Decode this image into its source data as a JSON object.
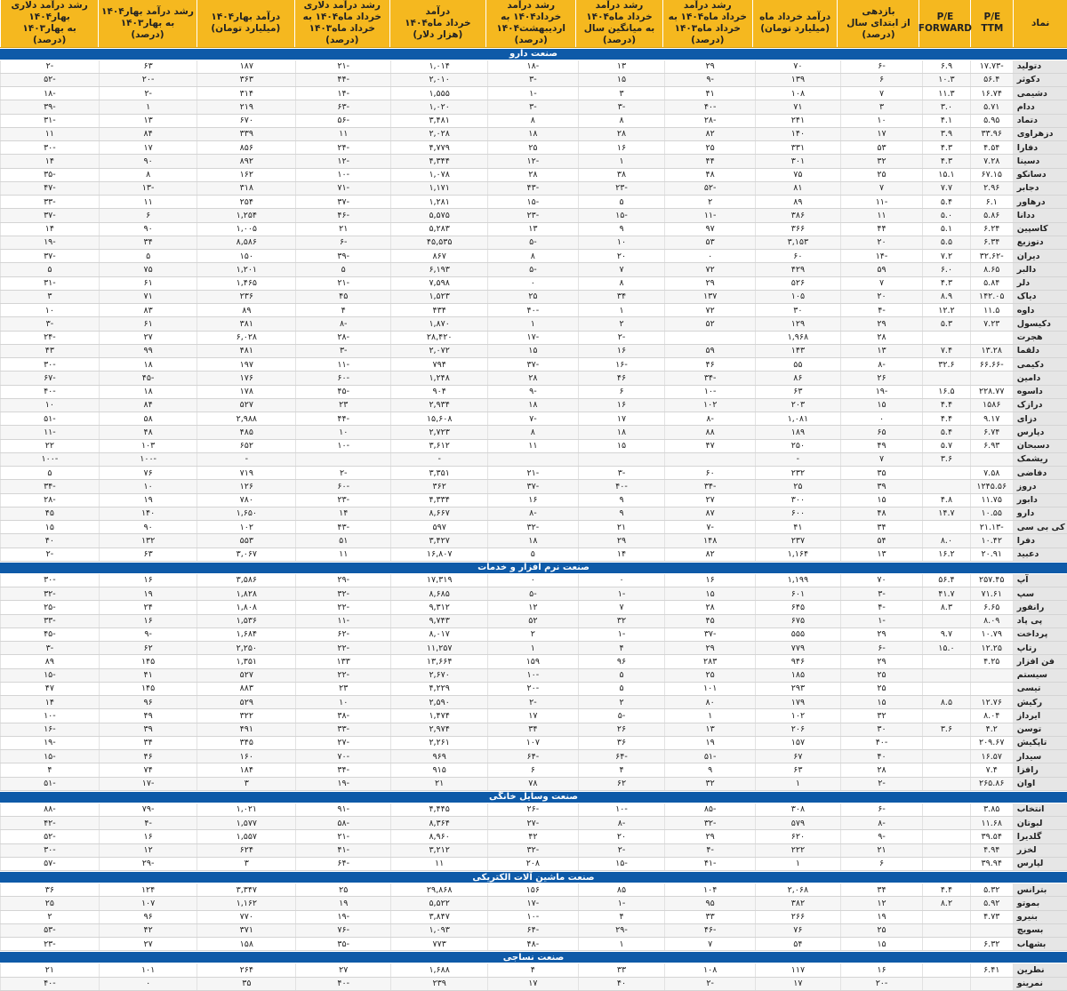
{
  "headers": [
    "نماد",
    "P/E\nTTM",
    "P/E\nFORWARD",
    "بازدهی\nاز ابتدای سال\n(درصد)",
    "درآمد خرداد ماه\n(میلیارد تومان)",
    "رشد درآمد\nخرداد ماه۱۴۰۴ به\nخرداد ماه۱۴۰۳\n(درصد)",
    "رشد درآمد\nخرداد ماه۱۴۰۴\nبه میانگین سال\n(درصد)",
    "رشد درآمد\nخرداد۱۴۰۴ به\nاردیبهشت۱۴۰۴\n(درصد)",
    "درآمد\nخرداد ماه۱۴۰۴\n(هزار دلار)",
    "رشد درآمد دلاری\nخرداد ماه۱۴۰۴ به\nخرداد ماه۱۴۰۳\n(درصد)",
    "درآمد بهار۱۴۰۴\n(میلیارد تومان)",
    "رشد درآمد بهار۱۴۰۴\nبه بهار۱۴۰۳\n(درصد)",
    "رشد درآمد دلاری بهار۱۴۰۴\nبه بهار۱۴۰۳\n(درصد)"
  ],
  "watermark": "دنیای اقتصاد",
  "sections": [
    {
      "title": "صنعت دارو",
      "rows": [
        [
          "دتولید",
          "-۱۷.۷۳",
          "۶.۹",
          "-۶",
          "۷۰",
          "۲۹",
          "۱۳",
          "-۱۸",
          "۱,۰۱۴",
          "-۲۱",
          "۱۸۷",
          "۶۳",
          "-۲"
        ],
        [
          "دکوثر",
          "۵۶.۴",
          "۱۰.۳",
          "۶",
          "۱۳۹",
          "-۹",
          "۱۵",
          "-۳",
          "۲,۰۱۰",
          "-۴۴",
          "۳۶۳",
          "-۲۰",
          "-۵۲"
        ],
        [
          "دشیمی",
          "۱۶.۷۴",
          "۱۱.۳",
          "۷",
          "۱۰۸",
          "۴۱",
          "۳",
          "-۱",
          "۱,۵۵۵",
          "-۱۴",
          "۳۱۴",
          "-۲",
          "-۱۸"
        ],
        [
          "ددام",
          "۵.۷۱",
          "۳.۰",
          "۳",
          "۷۱",
          "-۴۰",
          "-۳",
          "-۳",
          "۱,۰۲۰",
          "-۶۳",
          "۲۱۹",
          "۱",
          "-۳۹"
        ],
        [
          "دتماد",
          "۵.۹۵",
          "۴.۱",
          "۱۰",
          "۲۴۱",
          "-۲۸",
          "۸",
          "۸",
          "۳,۴۸۱",
          "-۵۶",
          "۶۷۰",
          "۱۳",
          "-۳۱"
        ],
        [
          "دزهراوی",
          "۳۳.۹۶",
          "۳.۹",
          "۱۷",
          "۱۴۰",
          "۸۲",
          "۲۸",
          "۱۸",
          "۲,۰۲۸",
          "۱۱",
          "۳۳۹",
          "۸۴",
          "۱۱"
        ],
        [
          "دفارا",
          "۴.۵۴",
          "۴.۳",
          "۵۳",
          "۳۳۱",
          "۲۵",
          "۱۶",
          "۲۵",
          "۴,۷۷۹",
          "-۲۴",
          "۸۵۶",
          "۱۷",
          "-۳۰"
        ],
        [
          "دسینا",
          "۷.۲۸",
          "۴.۳",
          "۳۲",
          "۳۰۱",
          "۴۴",
          "۱",
          "-۱۲",
          "۴,۳۴۴",
          "-۱۲",
          "۸۹۲",
          "۹۰",
          "۱۴"
        ],
        [
          "دسانکو",
          "۶۷.۱۵",
          "۱۵.۱",
          "۲۵",
          "۷۵",
          "۴۸",
          "۳۸",
          "۲۸",
          "۱,۰۷۸",
          "-۱۰",
          "۱۶۲",
          "۸",
          "-۳۵"
        ],
        [
          "دجابر",
          "۲.۹۶",
          "۷.۷",
          "۷",
          "۸۱",
          "-۵۲",
          "-۲۳",
          "-۴۳",
          "۱,۱۷۱",
          "-۷۱",
          "۳۱۸",
          "-۱۳",
          "-۴۷"
        ],
        [
          "درهاور",
          "۶.۱",
          "۵.۴",
          "-۱۱",
          "۸۹",
          "۲",
          "۵",
          "-۱۵",
          "۱,۲۸۱",
          "-۳۷",
          "۲۵۴",
          "۱۱",
          "-۳۳"
        ],
        [
          "ددانا",
          "۵.۸۶",
          "۵.۰",
          "۱۱",
          "۳۸۶",
          "-۱۱",
          "-۱۵",
          "-۲۳",
          "۵,۵۷۵",
          "-۴۶",
          "۱,۲۵۴",
          "۶",
          "-۳۷"
        ],
        [
          "کاسپین",
          "۶.۲۴",
          "۵.۱",
          "۴۴",
          "۳۶۶",
          "۹۷",
          "۹",
          "۱۳",
          "۵,۲۸۳",
          "۲۱",
          "۱,۰۰۵",
          "۹۰",
          "۱۴"
        ],
        [
          "دتوزیع",
          "۶.۳۴",
          "۵.۵",
          "۲۰",
          "۳,۱۵۳",
          "۵۳",
          "۱۰",
          "-۵",
          "۴۵,۵۳۵",
          "-۶",
          "۸,۵۸۶",
          "۳۴",
          "-۱۹"
        ],
        [
          "دیران",
          "-۳۲.۶۲",
          "۷.۲",
          "-۱۴",
          "۶۰",
          "۰",
          "۲۰",
          "۸",
          "۸۶۷",
          "-۳۹",
          "۱۵۰",
          "۵",
          "-۳۷"
        ],
        [
          "دالبر",
          "۸.۶۵",
          "۶.۰",
          "۵۹",
          "۴۲۹",
          "۷۲",
          "۷",
          "-۵",
          "۶,۱۹۳",
          "۵",
          "۱,۲۰۱",
          "۷۵",
          "۵"
        ],
        [
          "دلر",
          "۵.۸۴",
          "۴.۳",
          "۷",
          "۵۲۶",
          "۲۹",
          "۸",
          "۰",
          "۷,۵۹۸",
          "-۲۱",
          "۱,۴۶۵",
          "۶۱",
          "-۳۱"
        ],
        [
          "دیاک",
          "۱۴۲.۰۵",
          "۸.۹",
          "۲۰",
          "۱۰۵",
          "۱۳۷",
          "۳۴",
          "۲۵",
          "۱,۵۲۳",
          "۴۵",
          "۲۳۶",
          "۷۱",
          "۳"
        ],
        [
          "داوه",
          "۱۱.۵",
          "۱۲.۲",
          "-۴",
          "۳۰",
          "۷۲",
          "۱",
          "-۴۰",
          "۴۳۴",
          "۴",
          "۸۹",
          "۸۳",
          "۱۰"
        ],
        [
          "دکیسول",
          "۷.۲۳",
          "۵.۳",
          "۲۹",
          "۱۲۹",
          "۵۲",
          "۲",
          "۱",
          "۱,۸۷۰",
          "-۸",
          "۳۸۱",
          "۶۱",
          "-۳"
        ],
        [
          "هجرت",
          "",
          "",
          "۲۸",
          "۱,۹۶۸",
          "",
          "-۲",
          "-۱۷",
          "۲۸,۴۲۰",
          "-۲۸",
          "۶,۰۲۸",
          "۲۷",
          "-۲۴"
        ],
        [
          "دلقما",
          "۱۳.۲۸",
          "۷.۴",
          "۱۳",
          "۱۴۳",
          "۵۹",
          "۱۶",
          "۱۵",
          "۲,۰۷۲",
          "-۳",
          "۴۸۱",
          "۹۹",
          "۴۳"
        ],
        [
          "دکیمی",
          "-۶۶.۶۶",
          "۳۲.۶",
          "-۸",
          "۵۵",
          "۴۶",
          "-۱۶",
          "-۳۷",
          "۷۹۴",
          "-۱۱",
          "۱۹۷",
          "۱۸",
          "-۳۰"
        ],
        [
          "دامین",
          "",
          "",
          "۲۶",
          "۸۶",
          "-۳۴",
          "۴۶",
          "۲۸",
          "۱,۲۴۸",
          "-۶۰",
          "۱۷۶",
          "-۴۵",
          "-۶۷"
        ],
        [
          "داسوه",
          "۲۲۸.۷۷",
          "۱۶.۵",
          "-۱۹",
          "۶۳",
          "-۱۰",
          "۶",
          "-۹",
          "۹۰۴",
          "-۴۵",
          "۱۷۸",
          "۱۸",
          "-۴۰"
        ],
        [
          "درازک",
          "۱۵۸۶",
          "۴.۴",
          "۱۵",
          "۲۰۳",
          "۱۰۲",
          "۱۶",
          "۱۸",
          "۲,۹۳۴",
          "۲۳",
          "۵۲۷",
          "۸۴",
          "۱۰"
        ],
        [
          "دزای",
          "۹.۱۷",
          "۴.۴",
          "۰",
          "۱,۰۸۱",
          "-۸",
          "۱۷",
          "-۷",
          "۱۵,۶۰۸",
          "-۴۴",
          "۲,۹۸۸",
          "۵۸",
          "-۵۱"
        ],
        [
          "دپارس",
          "۶.۷۴",
          "۵.۴",
          "۶۵",
          "۱۸۹",
          "۸۸",
          "۱۸",
          "۸",
          "۲,۷۲۳",
          "۱۰",
          "۴۸۵",
          "۴۸",
          "-۱۱"
        ],
        [
          "دسبحان",
          "۶.۹۳",
          "۵.۷",
          "۴۹",
          "۲۵۰",
          "۴۷",
          "۱۵",
          "۱۱",
          "۳,۶۱۲",
          "-۱۰",
          "۶۵۲",
          "۱۰۳",
          "۲۲"
        ],
        [
          "ریشمک",
          "",
          "۳.۶",
          "۷",
          "-",
          "",
          "",
          "",
          "-",
          "",
          "-",
          "-۱۰۰",
          "-۱۰۰"
        ],
        [
          "دفاضی",
          "۷.۵۸",
          "",
          "۳۵",
          "۲۳۲",
          "۶۰",
          "-۳",
          "-۲۱",
          "۳,۳۵۱",
          "-۲",
          "۷۱۹",
          "۷۶",
          "۵"
        ],
        [
          "دروز",
          "۱۲۴۵.۵۶",
          "",
          "۳۹",
          "۲۵",
          "-۳۴",
          "-۴۰",
          "-۳۷",
          "۳۶۲",
          "-۶۰",
          "۱۲۶",
          "۱۰",
          "-۳۴"
        ],
        [
          "دابور",
          "۱۱.۷۵",
          "۴.۸",
          "۱۵",
          "۳۰۰",
          "۲۷",
          "۹",
          "۱۶",
          "۴,۳۳۴",
          "-۲۳",
          "۷۸۰",
          "۱۹",
          "-۲۸"
        ],
        [
          "دارو",
          "۱۰.۵۵",
          "۱۴.۷",
          "۴۸",
          "۶۰۰",
          "۸۷",
          "۹",
          "-۸",
          "۸,۶۶۷",
          "۱۴",
          "۱,۶۵۰",
          "۱۴۰",
          "۴۵"
        ],
        [
          "کی بی سی",
          "-۲۱.۱۳",
          "",
          "۳۴",
          "۴۱",
          "-۷",
          "۲۱",
          "-۳۲",
          "۵۹۷",
          "-۴۳",
          "۱۰۲",
          "۹۰",
          "۱۵"
        ],
        [
          "دفرا",
          "۱۰.۴۲",
          "۸.۰",
          "۵۴",
          "۲۳۷",
          "۱۴۸",
          "۲۹",
          "۱۸",
          "۳,۴۲۷",
          "۵۱",
          "۵۵۳",
          "۱۳۲",
          "۴۰"
        ],
        [
          "دعبید",
          "۲۰.۹۱",
          "۱۶.۲",
          "۱۳",
          "۱,۱۶۴",
          "۸۲",
          "۱۴",
          "۵",
          "۱۶,۸۰۷",
          "۱۱",
          "۳,۰۶۷",
          "۶۳",
          "-۲"
        ]
      ]
    },
    {
      "title": "صنعت نرم افزار و خدمات",
      "rows": [
        [
          "آپ",
          "۲۵۷.۴۵",
          "۵۶.۴",
          "۷۰",
          "۱,۱۹۹",
          "۱۶",
          "۰",
          "۰",
          "۱۷,۳۱۹",
          "-۲۹",
          "۳,۵۸۶",
          "۱۶",
          "-۳۰"
        ],
        [
          "سپ",
          "۷۱.۶۱",
          "۴۱.۷",
          "-۳",
          "۶۰۱",
          "۱۵",
          "-۱",
          "-۵",
          "۸,۶۸۵",
          "-۳۲",
          "۱,۸۲۸",
          "۱۹",
          "-۳۲"
        ],
        [
          "رانفور",
          "۶.۶۵",
          "۸.۳",
          "-۴",
          "۶۴۵",
          "۲۸",
          "۷",
          "۱۲",
          "۹,۳۱۲",
          "-۲۲",
          "۱,۸۰۸",
          "۲۴",
          "-۲۵"
        ],
        [
          "پی پاد",
          "۸.۰۹",
          "",
          "-۱",
          "۶۷۵",
          "۴۵",
          "۳۲",
          "۵۲",
          "۹,۷۴۳",
          "-۱۱",
          "۱,۵۳۶",
          "۱۶",
          "-۳۳"
        ],
        [
          "پرداخت",
          "۱۰.۷۹",
          "۹.۷",
          "۲۹",
          "۵۵۵",
          "-۳۷",
          "-۱",
          "۲",
          "۸,۰۱۷",
          "-۶۲",
          "۱,۶۸۴",
          "-۹",
          "-۴۵"
        ],
        [
          "رتاپ",
          "۱۲.۲۵",
          "۱۵.۰",
          "-۶",
          "۷۷۹",
          "۲۹",
          "۴",
          "۱",
          "۱۱,۲۵۷",
          "-۲۲",
          "۲,۲۵۰",
          "۶۲",
          "-۳"
        ],
        [
          "فن افزار",
          "۴.۲۵",
          "",
          "۲۹",
          "۹۴۶",
          "۲۸۳",
          "۹۶",
          "۱۵۹",
          "۱۳,۶۶۴",
          "۱۳۳",
          "۱,۳۵۱",
          "۱۴۵",
          "۸۹"
        ],
        [
          "سیستم",
          "",
          "",
          "۲۵",
          "۱۸۵",
          "۲۵",
          "۵",
          "-۱۰",
          "۲,۶۷۰",
          "-۲۲",
          "۵۲۷",
          "۴۱",
          "-۱۵"
        ],
        [
          "تیسی",
          "",
          "",
          "۲۵",
          "۲۹۳",
          "۱۰۱",
          "۵",
          "-۲۰",
          "۴,۲۲۹",
          "۲۳",
          "۸۸۳",
          "۱۴۵",
          "۴۷"
        ],
        [
          "رکیش",
          "۱۲.۷۶",
          "۸.۵",
          "۱۵",
          "۱۷۹",
          "۸۰",
          "۲",
          "-۲",
          "۲,۵۹۰",
          "۱۰",
          "۵۲۹",
          "۹۶",
          "۱۴"
        ],
        [
          "ایرداز",
          "۸.۰۴",
          "",
          "۳۲",
          "۱۰۲",
          "۱",
          "-۵",
          "۱۷",
          "۱,۴۷۴",
          "-۳۸",
          "۳۲۲",
          "۴۹",
          "-۱۰"
        ],
        [
          "توسن",
          "۴.۲",
          "۳.۶",
          "۳۰",
          "۲۰۶",
          "۱۳",
          "۲۶",
          "۳۴",
          "۲,۹۷۴",
          "-۳۳",
          "۴۹۱",
          "۳۹",
          "-۱۶"
        ],
        [
          "تاپکیش",
          "۲۰۹.۶۷",
          "",
          "-۴۰",
          "۱۵۷",
          "۱۹",
          "۳۶",
          "۱۰۷",
          "۲,۲۶۱",
          "-۲۷",
          "۳۴۵",
          "۳۴",
          "-۱۹"
        ],
        [
          "سیدار",
          "۱۶.۵۷",
          "",
          "۴۰",
          "۶۷",
          "-۵۱",
          "-۶۴",
          "-۶۴",
          "۹۶۹",
          "-۷۰",
          "۱۶۰",
          "۴۶",
          "-۱۵"
        ],
        [
          "رافزا",
          "۷.۴",
          "",
          "۲۸",
          "۶۳",
          "۹",
          "۴",
          "۶",
          "۹۱۵",
          "-۳۴",
          "۱۸۴",
          "۷۴",
          "۴"
        ],
        [
          "اوان",
          "۲۶۵.۸۶",
          "",
          "-۲",
          "۱",
          "۳۲",
          "۶۲",
          "۷۸",
          "۲۱",
          "-۱۹",
          "۳",
          "-۱۷",
          "-۵۱"
        ]
      ]
    },
    {
      "title": "صنعت وسایل خانگی",
      "rows": [
        [
          "انتخاب",
          "۳.۸۵",
          "",
          "-۶",
          "۳۰۸",
          "-۸۵",
          "-۱۰",
          "-۲۶",
          "۴,۴۴۵",
          "-۹۱",
          "۱,۰۲۱",
          "-۷۹",
          "-۸۸"
        ],
        [
          "لبوتان",
          "۱۱.۶۸",
          "",
          "-۸",
          "۵۷۹",
          "-۳۲",
          "-۸",
          "-۲۷",
          "۸,۳۶۴",
          "-۵۸",
          "۱,۵۷۷",
          "-۴",
          "-۴۲"
        ],
        [
          "گلدیرا",
          "۳۹.۵۴",
          "",
          "-۹",
          "۶۲۰",
          "۲۹",
          "۲۰",
          "۴۲",
          "۸,۹۶۰",
          "-۲۱",
          "۱,۵۵۷",
          "۱۶",
          "-۵۲"
        ],
        [
          "لخزر",
          "۴.۹۴",
          "",
          "۲۱",
          "۲۲۲",
          "-۴",
          "-۲",
          "-۳۲",
          "۳,۲۱۲",
          "-۴۱",
          "۶۲۴",
          "۱۲",
          "-۳۰"
        ],
        [
          "لپارس",
          "۳۹.۹۴",
          "",
          "۶",
          "۱",
          "-۴۱",
          "-۱۵",
          "۲۰۸",
          "۱۱",
          "-۶۴",
          "۳",
          "-۲۹",
          "-۵۷"
        ]
      ]
    },
    {
      "title": "صنعت ماشین آلات الکتریکی",
      "rows": [
        [
          "بترانس",
          "۵.۳۲",
          "۴.۴",
          "۳۴",
          "۲,۰۶۸",
          "۱۰۴",
          "۸۵",
          "۱۵۶",
          "۲۹,۸۶۸",
          "۲۵",
          "۳,۳۴۷",
          "۱۲۴",
          "۳۶"
        ],
        [
          "بموتو",
          "۵.۹۲",
          "۸.۲",
          "۱۲",
          "۳۸۲",
          "۹۵",
          "-۱",
          "-۱۷",
          "۵,۵۲۲",
          "۱۹",
          "۱,۱۶۲",
          "۱۰۷",
          "۲۵"
        ],
        [
          "بنیرو",
          "۴.۷۳",
          "",
          "۱۹",
          "۲۶۶",
          "۳۳",
          "۴",
          "-۱۰",
          "۳,۸۴۷",
          "-۱۹",
          "۷۷۰",
          "۹۶",
          "۲"
        ],
        [
          "بسویچ",
          "",
          "",
          "۲۵",
          "۷۶",
          "-۴۶",
          "-۲۹",
          "-۶۴",
          "۱,۰۹۳",
          "-۷۶",
          "۳۷۱",
          "۴۲",
          "-۵۳"
        ],
        [
          "بشهاب",
          "۶.۳۲",
          "",
          "۱۵",
          "۵۴",
          "۷",
          "۱",
          "-۴۸",
          "۷۷۳",
          "-۳۵",
          "۱۵۸",
          "۲۷",
          "-۲۳"
        ]
      ]
    },
    {
      "title": "صنعت نساجی",
      "rows": [
        [
          "نطرین",
          "۶.۴۱",
          "",
          "۱۶",
          "۱۱۷",
          "۱۰۸",
          "۳۳",
          "۴",
          "۱,۶۸۸",
          "۲۷",
          "۲۶۴",
          "۱۰۱",
          "۲۱"
        ],
        [
          "نمرینو",
          "",
          "",
          "-۲۰",
          "۱۷",
          "-۲",
          "۴۰",
          "۱۷",
          "۲۳۹",
          "-۴۰",
          "۳۵",
          "۰",
          "-۴۰"
        ]
      ]
    }
  ]
}
